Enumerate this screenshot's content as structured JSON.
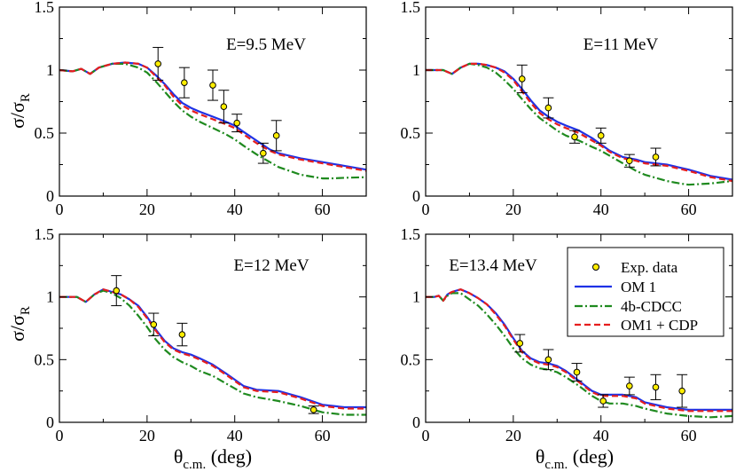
{
  "figure": {
    "ylabel_main": "σ/σ",
    "ylabel_sub": "R",
    "xlabel_main": "θ",
    "xlabel_sub": "c.m.",
    "xlabel_unit": " (deg)"
  },
  "legend": {
    "items": [
      {
        "label": "Exp. data",
        "kind": "marker"
      },
      {
        "label": "OM 1",
        "kind": "line",
        "color": "#1f32e6"
      },
      {
        "label": "4b-CDCC",
        "kind": "dashdot",
        "color": "#1f8a1f"
      },
      {
        "label": "OM1 + CDP",
        "kind": "dashed",
        "color": "#e61e1e"
      }
    ]
  },
  "chart_data": [
    {
      "type": "line",
      "annotation": "E=9.5 MeV",
      "xlim": [
        0,
        70
      ],
      "ylim": [
        0,
        1.5
      ],
      "xticks": [
        0,
        20,
        40,
        60
      ],
      "xtick_labels": [
        "0",
        "20",
        "40",
        "60"
      ],
      "yticks": [
        0,
        0.5,
        1,
        1.5
      ],
      "ytick_labels": [
        "0",
        "0.5",
        "1",
        "1.5"
      ],
      "exp": [
        {
          "x": 22.5,
          "y": 1.05,
          "err": 0.13
        },
        {
          "x": 28.5,
          "y": 0.9,
          "err": 0.12
        },
        {
          "x": 35,
          "y": 0.88,
          "err": 0.12
        },
        {
          "x": 37.5,
          "y": 0.71,
          "err": 0.13
        },
        {
          "x": 40.5,
          "y": 0.58,
          "err": 0.07
        },
        {
          "x": 46.5,
          "y": 0.34,
          "err": 0.08
        },
        {
          "x": 49.5,
          "y": 0.48,
          "err": 0.12
        }
      ],
      "series": [
        {
          "name": "OM 1",
          "color": "#1f32e6",
          "dash": "",
          "x": [
            0,
            3,
            5,
            7,
            9,
            12,
            15,
            18,
            20,
            22,
            24,
            26,
            28,
            30,
            32,
            35,
            38,
            40,
            42,
            45,
            48,
            50,
            55,
            60,
            65,
            70
          ],
          "y": [
            1.0,
            0.99,
            1.01,
            0.97,
            1.02,
            1.05,
            1.06,
            1.05,
            1.02,
            0.96,
            0.89,
            0.81,
            0.74,
            0.7,
            0.67,
            0.63,
            0.59,
            0.56,
            0.51,
            0.44,
            0.37,
            0.34,
            0.3,
            0.27,
            0.24,
            0.21
          ]
        },
        {
          "name": "OM1 + CDP",
          "color": "#e61e1e",
          "dash": "7,4",
          "x": [
            0,
            3,
            5,
            7,
            9,
            12,
            15,
            18,
            20,
            22,
            24,
            26,
            28,
            30,
            32,
            35,
            38,
            40,
            42,
            45,
            48,
            50,
            55,
            60,
            65,
            70
          ],
          "y": [
            1.0,
            0.99,
            1.01,
            0.97,
            1.02,
            1.05,
            1.06,
            1.05,
            1.02,
            0.95,
            0.88,
            0.79,
            0.72,
            0.68,
            0.65,
            0.61,
            0.57,
            0.54,
            0.49,
            0.42,
            0.36,
            0.33,
            0.29,
            0.26,
            0.23,
            0.2
          ]
        },
        {
          "name": "4b-CDCC",
          "color": "#1f8a1f",
          "dash": "9,3,2,3",
          "x": [
            0,
            3,
            5,
            7,
            9,
            12,
            15,
            18,
            20,
            22,
            24,
            26,
            28,
            30,
            32,
            35,
            38,
            40,
            42,
            45,
            48,
            50,
            55,
            60,
            62,
            65,
            70
          ],
          "y": [
            1.0,
            0.99,
            1.01,
            0.97,
            1.02,
            1.05,
            1.05,
            1.02,
            0.98,
            0.91,
            0.83,
            0.75,
            0.68,
            0.63,
            0.59,
            0.54,
            0.49,
            0.45,
            0.4,
            0.33,
            0.27,
            0.23,
            0.17,
            0.14,
            0.14,
            0.145,
            0.15
          ]
        }
      ]
    },
    {
      "type": "line",
      "annotation": "E=11 MeV",
      "xlim": [
        0,
        70
      ],
      "ylim": [
        0,
        1.5
      ],
      "xticks": [
        0,
        20,
        40,
        60
      ],
      "xtick_labels": [
        "0",
        "20",
        "40",
        "60"
      ],
      "yticks": [
        0,
        0.5,
        1,
        1.5
      ],
      "ytick_labels": [
        "0",
        "0.5",
        "1",
        "1.5"
      ],
      "exp": [
        {
          "x": 22,
          "y": 0.93,
          "err": 0.11
        },
        {
          "x": 28,
          "y": 0.7,
          "err": 0.08
        },
        {
          "x": 34,
          "y": 0.47,
          "err": 0.05
        },
        {
          "x": 40,
          "y": 0.48,
          "err": 0.06
        },
        {
          "x": 46.5,
          "y": 0.28,
          "err": 0.05
        },
        {
          "x": 52.5,
          "y": 0.31,
          "err": 0.07
        }
      ],
      "series": [
        {
          "name": "OM 1",
          "color": "#1f32e6",
          "dash": "",
          "x": [
            0,
            2,
            4,
            6,
            8,
            10,
            12,
            14,
            16,
            18,
            20,
            22,
            24,
            26,
            28,
            30,
            32,
            35,
            38,
            40,
            42,
            45,
            48,
            50,
            55,
            60,
            65,
            70
          ],
          "y": [
            1.0,
            1.0,
            1.0,
            0.97,
            1.02,
            1.05,
            1.05,
            1.04,
            1.02,
            0.99,
            0.93,
            0.85,
            0.76,
            0.68,
            0.63,
            0.59,
            0.56,
            0.52,
            0.46,
            0.41,
            0.36,
            0.31,
            0.29,
            0.27,
            0.25,
            0.21,
            0.16,
            0.13
          ]
        },
        {
          "name": "OM1 + CDP",
          "color": "#e61e1e",
          "dash": "7,4",
          "x": [
            0,
            2,
            4,
            6,
            8,
            10,
            12,
            14,
            16,
            18,
            20,
            22,
            24,
            26,
            28,
            30,
            32,
            35,
            38,
            40,
            42,
            45,
            48,
            50,
            55,
            60,
            65,
            70
          ],
          "y": [
            1.0,
            1.0,
            1.0,
            0.97,
            1.02,
            1.05,
            1.05,
            1.04,
            1.02,
            0.98,
            0.92,
            0.83,
            0.74,
            0.66,
            0.61,
            0.57,
            0.54,
            0.5,
            0.44,
            0.4,
            0.35,
            0.3,
            0.28,
            0.26,
            0.24,
            0.2,
            0.15,
            0.12
          ]
        },
        {
          "name": "4b-CDCC",
          "color": "#1f8a1f",
          "dash": "9,3,2,3",
          "x": [
            0,
            2,
            4,
            6,
            8,
            10,
            12,
            14,
            16,
            18,
            20,
            22,
            24,
            26,
            28,
            30,
            32,
            35,
            38,
            40,
            42,
            45,
            48,
            50,
            55,
            58,
            60,
            65,
            70
          ],
          "y": [
            1.0,
            1.0,
            1.0,
            0.97,
            1.02,
            1.05,
            1.04,
            1.02,
            0.98,
            0.92,
            0.85,
            0.77,
            0.69,
            0.62,
            0.57,
            0.52,
            0.48,
            0.44,
            0.39,
            0.36,
            0.32,
            0.26,
            0.2,
            0.17,
            0.12,
            0.1,
            0.09,
            0.1,
            0.12
          ]
        }
      ]
    },
    {
      "type": "line",
      "annotation": "E=12 MeV",
      "xlim": [
        0,
        70
      ],
      "ylim": [
        0,
        1.5
      ],
      "xticks": [
        0,
        20,
        40,
        60
      ],
      "xtick_labels": [
        "0",
        "20",
        "40",
        "60"
      ],
      "yticks": [
        0,
        0.5,
        1,
        1.5
      ],
      "ytick_labels": [
        "0",
        "0.5",
        "1",
        "1.5"
      ],
      "exp": [
        {
          "x": 13,
          "y": 1.05,
          "err": 0.12
        },
        {
          "x": 21.5,
          "y": 0.78,
          "err": 0.09
        },
        {
          "x": 28,
          "y": 0.7,
          "err": 0.09
        },
        {
          "x": 58,
          "y": 0.1,
          "err": 0.03
        }
      ],
      "series": [
        {
          "name": "OM 1",
          "color": "#1f32e6",
          "dash": "",
          "x": [
            0,
            2,
            4,
            6,
            8,
            10,
            12,
            14,
            16,
            18,
            20,
            22,
            24,
            26,
            28,
            30,
            32,
            35,
            38,
            40,
            42,
            45,
            50,
            55,
            60,
            65,
            70
          ],
          "y": [
            1.0,
            1.0,
            1.0,
            0.96,
            1.02,
            1.06,
            1.04,
            1.02,
            0.98,
            0.93,
            0.84,
            0.74,
            0.65,
            0.59,
            0.56,
            0.54,
            0.51,
            0.46,
            0.39,
            0.34,
            0.29,
            0.26,
            0.25,
            0.2,
            0.14,
            0.12,
            0.12
          ]
        },
        {
          "name": "OM1 + CDP",
          "color": "#e61e1e",
          "dash": "7,4",
          "x": [
            0,
            2,
            4,
            6,
            8,
            10,
            12,
            14,
            16,
            18,
            20,
            22,
            24,
            26,
            28,
            30,
            32,
            35,
            38,
            40,
            42,
            45,
            50,
            55,
            60,
            65,
            70
          ],
          "y": [
            1.0,
            1.0,
            1.0,
            0.96,
            1.02,
            1.06,
            1.04,
            1.02,
            0.98,
            0.92,
            0.83,
            0.73,
            0.64,
            0.58,
            0.55,
            0.53,
            0.5,
            0.45,
            0.38,
            0.33,
            0.28,
            0.25,
            0.24,
            0.19,
            0.13,
            0.11,
            0.11
          ]
        },
        {
          "name": "4b-CDCC",
          "color": "#1f8a1f",
          "dash": "9,3,2,3",
          "x": [
            0,
            2,
            4,
            6,
            8,
            10,
            12,
            14,
            16,
            18,
            20,
            22,
            24,
            26,
            28,
            30,
            32,
            35,
            38,
            40,
            42,
            45,
            50,
            55,
            60,
            65,
            70
          ],
          "y": [
            1.0,
            1.0,
            1.0,
            0.96,
            1.02,
            1.05,
            1.03,
            0.99,
            0.93,
            0.85,
            0.76,
            0.66,
            0.58,
            0.52,
            0.48,
            0.45,
            0.41,
            0.37,
            0.31,
            0.27,
            0.23,
            0.2,
            0.17,
            0.13,
            0.08,
            0.06,
            0.06
          ]
        }
      ]
    },
    {
      "type": "line",
      "annotation": "E=13.4 MeV",
      "xlim": [
        0,
        70
      ],
      "ylim": [
        0,
        1.5
      ],
      "xticks": [
        0,
        20,
        40,
        60
      ],
      "xtick_labels": [
        "0",
        "20",
        "40",
        "60"
      ],
      "yticks": [
        0,
        0.5,
        1,
        1.5
      ],
      "ytick_labels": [
        "0",
        "0.5",
        "1",
        "1.5"
      ],
      "exp": [
        {
          "x": 21.5,
          "y": 0.63,
          "err": 0.07
        },
        {
          "x": 28,
          "y": 0.5,
          "err": 0.08
        },
        {
          "x": 34.5,
          "y": 0.4,
          "err": 0.07
        },
        {
          "x": 40.5,
          "y": 0.17,
          "err": 0.05
        },
        {
          "x": 46.5,
          "y": 0.29,
          "err": 0.07
        },
        {
          "x": 52.5,
          "y": 0.28,
          "err": 0.1
        },
        {
          "x": 58.5,
          "y": 0.25,
          "err": 0.13
        }
      ],
      "series": [
        {
          "name": "OM 1",
          "color": "#1f32e6",
          "dash": "",
          "x": [
            0,
            2,
            3,
            4,
            5,
            6,
            8,
            10,
            12,
            14,
            16,
            18,
            20,
            22,
            24,
            26,
            28,
            30,
            32,
            35,
            38,
            40,
            42,
            45,
            48,
            50,
            55,
            60,
            65,
            70
          ],
          "y": [
            1.0,
            1.0,
            1.01,
            0.97,
            1.02,
            1.04,
            1.06,
            1.03,
            0.99,
            0.94,
            0.87,
            0.78,
            0.67,
            0.57,
            0.51,
            0.48,
            0.47,
            0.45,
            0.41,
            0.33,
            0.25,
            0.22,
            0.22,
            0.22,
            0.2,
            0.16,
            0.12,
            0.1,
            0.1,
            0.1
          ]
        },
        {
          "name": "OM1 + CDP",
          "color": "#e61e1e",
          "dash": "7,4",
          "x": [
            0,
            2,
            3,
            4,
            5,
            6,
            8,
            10,
            12,
            14,
            16,
            18,
            20,
            22,
            24,
            26,
            28,
            30,
            32,
            35,
            38,
            40,
            42,
            45,
            48,
            50,
            55,
            60,
            65,
            70
          ],
          "y": [
            1.0,
            1.0,
            1.01,
            0.97,
            1.02,
            1.04,
            1.06,
            1.03,
            0.99,
            0.94,
            0.86,
            0.77,
            0.66,
            0.56,
            0.5,
            0.47,
            0.46,
            0.44,
            0.4,
            0.32,
            0.24,
            0.21,
            0.21,
            0.21,
            0.19,
            0.15,
            0.11,
            0.09,
            0.09,
            0.09
          ]
        },
        {
          "name": "4b-CDCC",
          "color": "#1f8a1f",
          "dash": "9,3,2,3",
          "x": [
            0,
            2,
            3,
            4,
            5,
            6,
            8,
            10,
            12,
            14,
            16,
            18,
            20,
            22,
            24,
            26,
            28,
            30,
            32,
            35,
            38,
            40,
            42,
            45,
            48,
            50,
            55,
            60,
            65,
            70
          ],
          "y": [
            1.0,
            1.0,
            1.01,
            0.97,
            1.01,
            1.03,
            1.03,
            0.98,
            0.93,
            0.86,
            0.78,
            0.69,
            0.59,
            0.51,
            0.46,
            0.43,
            0.42,
            0.4,
            0.36,
            0.29,
            0.21,
            0.17,
            0.15,
            0.15,
            0.13,
            0.11,
            0.07,
            0.05,
            0.04,
            0.05
          ]
        }
      ]
    }
  ]
}
